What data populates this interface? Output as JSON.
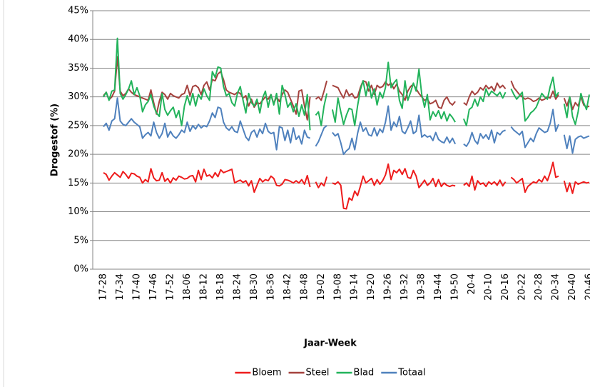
{
  "chart_data": {
    "type": "line",
    "ylabel": "Drogestof (%)",
    "xlabel": "Jaar-Week",
    "categories": [
      "17-28",
      null,
      null,
      null,
      null,
      null,
      "17-34",
      null,
      null,
      null,
      null,
      null,
      "17-40",
      null,
      null,
      null,
      null,
      null,
      "17-46",
      null,
      null,
      null,
      null,
      null,
      "17-52",
      null,
      null,
      null,
      null,
      null,
      "18-06",
      null,
      null,
      null,
      null,
      null,
      "18-12",
      null,
      null,
      null,
      null,
      null,
      "18-18",
      null,
      null,
      null,
      null,
      null,
      "18-24",
      null,
      null,
      null,
      null,
      null,
      "18-30",
      null,
      null,
      null,
      null,
      null,
      "18-36",
      null,
      null,
      null,
      null,
      null,
      "18-42",
      null,
      null,
      null,
      null,
      null,
      "18-48",
      null,
      null,
      null,
      null,
      null,
      "19-02",
      null,
      null,
      null,
      null,
      null,
      "19-08",
      null,
      null,
      null,
      null,
      null,
      "19-14",
      null,
      null,
      null,
      null,
      null,
      "19-20",
      null,
      null,
      null,
      null,
      null,
      "19-26",
      null,
      null,
      null,
      null,
      null,
      "19-32",
      null,
      null,
      null,
      null,
      null,
      "19-38",
      null,
      null,
      null,
      null,
      null,
      "19-44",
      null,
      null,
      null,
      null,
      null,
      "19-50",
      null,
      null,
      null,
      null,
      null,
      "20-4",
      null,
      null,
      null,
      null,
      null,
      "20-10",
      null,
      null,
      null,
      null,
      null,
      "20-16",
      null,
      null,
      null,
      null,
      null,
      "20-22",
      null,
      null,
      null,
      null,
      null,
      "20-28",
      null,
      null,
      null,
      null,
      null,
      "20-34",
      null,
      null,
      null,
      null,
      null,
      "20-40",
      null,
      null,
      null,
      null,
      null,
      "20-46"
    ],
    "series": [
      {
        "name": "Bloem",
        "color": "#ee1c1c",
        "values": [
          16.8,
          16.5,
          15.5,
          16.2,
          16.8,
          16.4,
          16.0,
          17.0,
          16.5,
          15.8,
          16.7,
          16.6,
          16.2,
          16.0,
          15.0,
          15.6,
          15.2,
          17.5,
          15.9,
          15.4,
          15.5,
          16.8,
          15.3,
          15.8,
          15.0,
          15.9,
          15.5,
          16.2,
          16.0,
          15.7,
          15.8,
          16.2,
          16.3,
          15.2,
          17.2,
          15.6,
          17.4,
          16.2,
          16.4,
          15.9,
          16.8,
          16.1,
          17.3,
          16.8,
          17.0,
          17.2,
          17.4,
          15.0,
          15.3,
          15.5,
          15.1,
          15.4,
          14.5,
          15.4,
          13.4,
          14.6,
          15.8,
          15.2,
          15.6,
          15.4,
          16.2,
          15.8,
          14.6,
          14.5,
          14.8,
          15.6,
          15.5,
          15.3,
          15.0,
          15.4,
          15.0,
          15.6,
          14.8,
          16.3,
          14.3,
          null,
          15.2,
          14.2,
          15.0,
          14.5,
          16.1,
          null,
          15.0,
          14.8,
          15.2,
          14.6,
          10.6,
          10.5,
          12.4,
          12.0,
          13.6,
          12.8,
          14.4,
          16.2,
          15.0,
          15.4,
          15.8,
          14.6,
          15.6,
          14.8,
          15.4,
          16.4,
          18.3,
          15.6,
          17.2,
          16.8,
          17.4,
          16.5,
          17.5,
          16.0,
          15.8,
          17.2,
          16.2,
          14.2,
          14.8,
          15.5,
          14.6,
          15.0,
          15.8,
          14.4,
          15.6,
          14.4,
          15.0,
          14.6,
          14.4,
          14.6,
          14.5,
          null,
          null,
          14.6,
          15.0,
          14.4,
          16.2,
          13.8,
          15.4,
          14.8,
          15.0,
          14.4,
          15.2,
          14.8,
          15.2,
          14.6,
          15.5,
          14.5,
          15.2,
          null,
          16.0,
          15.6,
          15.0,
          15.4,
          15.8,
          13.4,
          14.4,
          14.8,
          15.2,
          15.0,
          15.6,
          15.2,
          16.2,
          15.4,
          16.8,
          18.6,
          16.0,
          16.2,
          null,
          15.4,
          13.5,
          15.0,
          13.2,
          15.2,
          14.8,
          15.0,
          15.2,
          15.0,
          15.1
        ]
      },
      {
        "name": "Steel",
        "color": "#a5423e",
        "values": [
          30.2,
          30.8,
          29.5,
          30.0,
          31.0,
          37.0,
          31.0,
          30.2,
          30.6,
          31.4,
          30.8,
          30.4,
          30.2,
          30.0,
          29.8,
          29.6,
          29.4,
          31.2,
          29.0,
          27.0,
          29.2,
          30.8,
          30.4,
          29.6,
          30.6,
          30.2,
          30.0,
          29.8,
          30.4,
          30.6,
          32.0,
          30.2,
          31.8,
          32.0,
          31.6,
          30.4,
          32.0,
          32.6,
          31.2,
          33.0,
          32.8,
          34.0,
          34.4,
          33.0,
          31.2,
          30.8,
          30.6,
          30.4,
          30.8,
          30.6,
          29.8,
          30.2,
          28.4,
          29.6,
          28.2,
          29.0,
          28.8,
          29.4,
          30.0,
          29.6,
          30.4,
          28.8,
          30.0,
          29.2,
          30.4,
          31.2,
          30.8,
          29.6,
          28.4,
          27.0,
          31.0,
          31.2,
          28.4,
          26.0,
          30.0,
          null,
          29.6,
          30.0,
          29.4,
          31.0,
          32.8,
          null,
          32.0,
          31.8,
          31.6,
          30.6,
          29.8,
          31.2,
          30.2,
          30.6,
          29.8,
          30.0,
          31.6,
          32.8,
          32.6,
          31.0,
          32.0,
          30.4,
          32.0,
          31.6,
          31.8,
          32.6,
          32.0,
          32.4,
          31.4,
          32.2,
          31.0,
          30.4,
          29.4,
          31.0,
          31.8,
          32.2,
          31.4,
          30.6,
          30.0,
          29.4,
          29.6,
          28.8,
          29.0,
          29.4,
          28.2,
          28.0,
          29.4,
          30.0,
          29.0,
          28.6,
          29.2,
          null,
          null,
          29.0,
          28.6,
          30.0,
          31.0,
          30.4,
          30.8,
          31.6,
          31.2,
          32.0,
          31.4,
          31.8,
          31.0,
          32.4,
          31.6,
          32.0,
          31.4,
          null,
          32.8,
          31.6,
          31.0,
          30.4,
          30.0,
          29.6,
          29.8,
          29.6,
          29.2,
          29.4,
          29.8,
          29.4,
          29.6,
          30.0,
          29.8,
          31.0,
          29.6,
          30.4,
          null,
          29.8,
          28.4,
          30.0,
          27.8,
          29.0,
          28.4,
          30.0,
          28.6,
          28.2,
          28.4
        ]
      },
      {
        "name": "Blad",
        "color": "#22b35b",
        "values": [
          30.0,
          30.8,
          29.4,
          31.0,
          31.2,
          40.2,
          30.6,
          29.6,
          30.4,
          31.4,
          32.8,
          30.4,
          31.6,
          30.2,
          27.4,
          28.6,
          29.2,
          30.4,
          28.4,
          27.2,
          26.6,
          30.6,
          27.8,
          26.8,
          27.6,
          28.2,
          26.4,
          27.6,
          25.0,
          28.4,
          30.2,
          28.6,
          30.6,
          28.4,
          30.4,
          29.6,
          31.4,
          30.2,
          29.4,
          34.4,
          33.4,
          35.2,
          35.0,
          31.8,
          30.2,
          30.6,
          29.0,
          28.4,
          30.6,
          31.8,
          29.4,
          27.2,
          30.6,
          29.0,
          28.4,
          29.6,
          27.2,
          29.8,
          31.0,
          28.2,
          30.4,
          28.6,
          30.6,
          27.0,
          32.0,
          30.4,
          28.2,
          29.0,
          27.4,
          28.8,
          26.6,
          28.6,
          26.8,
          30.4,
          24.2,
          null,
          26.8,
          27.4,
          25.0,
          28.4,
          30.6,
          null,
          27.8,
          25.6,
          29.8,
          27.4,
          25.2,
          26.8,
          28.0,
          27.8,
          25.0,
          28.4,
          31.2,
          32.8,
          30.2,
          32.6,
          29.8,
          31.4,
          28.6,
          30.8,
          29.8,
          31.6,
          36.0,
          31.6,
          32.4,
          33.0,
          29.4,
          28.0,
          32.8,
          29.4,
          30.8,
          32.4,
          31.0,
          34.8,
          30.4,
          28.2,
          30.4,
          26.0,
          27.4,
          26.6,
          27.6,
          26.2,
          27.4,
          25.8,
          27.0,
          26.4,
          25.6,
          null,
          null,
          26.2,
          25.0,
          27.8,
          28.2,
          29.6,
          28.4,
          30.0,
          29.2,
          31.4,
          30.2,
          31.0,
          30.6,
          30.2,
          30.8,
          29.8,
          30.8,
          null,
          31.4,
          30.4,
          29.6,
          30.2,
          30.8,
          25.8,
          26.4,
          27.2,
          27.6,
          28.2,
          29.4,
          30.6,
          30.0,
          29.6,
          31.8,
          33.4,
          30.0,
          30.8,
          null,
          28.8,
          26.4,
          30.0,
          26.6,
          25.2,
          27.4,
          30.6,
          29.0,
          27.8,
          30.4
        ]
      },
      {
        "name": "Totaal",
        "color": "#4f81bd",
        "values": [
          24.8,
          25.4,
          24.2,
          25.8,
          26.2,
          29.8,
          25.8,
          25.2,
          25.0,
          25.6,
          26.2,
          25.6,
          25.2,
          24.8,
          22.8,
          23.4,
          23.8,
          23.2,
          25.6,
          23.8,
          22.8,
          23.6,
          25.4,
          23.0,
          24.0,
          23.2,
          22.8,
          23.4,
          24.2,
          23.8,
          25.6,
          24.0,
          25.0,
          24.4,
          25.2,
          24.6,
          25.0,
          24.8,
          25.8,
          27.2,
          26.4,
          28.2,
          28.0,
          25.6,
          24.6,
          24.2,
          24.8,
          24.0,
          23.8,
          25.8,
          24.4,
          23.0,
          22.4,
          23.8,
          24.2,
          23.0,
          24.4,
          23.6,
          25.4,
          24.0,
          23.6,
          23.8,
          20.8,
          24.8,
          24.6,
          22.4,
          24.2,
          22.0,
          24.6,
          22.6,
          23.2,
          21.8,
          24.2,
          23.0,
          22.8,
          null,
          21.4,
          22.2,
          23.4,
          24.6,
          25.0,
          null,
          23.8,
          23.2,
          23.6,
          22.0,
          20.0,
          20.6,
          21.0,
          22.8,
          20.8,
          23.6,
          25.6,
          24.0,
          24.6,
          23.4,
          23.2,
          24.6,
          23.2,
          24.4,
          23.8,
          25.6,
          28.4,
          24.2,
          25.6,
          24.8,
          26.6,
          24.0,
          23.6,
          24.6,
          25.8,
          23.6,
          24.0,
          26.8,
          23.0,
          23.4,
          23.0,
          23.2,
          22.4,
          23.8,
          22.6,
          22.2,
          22.0,
          23.0,
          22.0,
          22.8,
          21.8,
          null,
          null,
          21.8,
          21.4,
          22.2,
          23.8,
          22.4,
          21.8,
          23.6,
          22.8,
          23.4,
          22.6,
          24.2,
          22.0,
          23.8,
          23.4,
          24.0,
          24.2,
          null,
          24.8,
          24.2,
          23.8,
          23.4,
          24.0,
          21.2,
          22.0,
          22.8,
          22.2,
          23.6,
          24.6,
          24.2,
          23.8,
          24.0,
          25.4,
          27.8,
          24.0,
          25.2,
          null,
          23.4,
          21.0,
          23.2,
          20.2,
          22.6,
          23.0,
          23.2,
          22.8,
          23.0,
          23.2
        ]
      }
    ],
    "ylim": [
      0,
      45
    ],
    "yticks": [
      {
        "value": 0,
        "label": "0%"
      },
      {
        "value": 5,
        "label": "5%"
      },
      {
        "value": 10,
        "label": "10%"
      },
      {
        "value": 15,
        "label": "15%"
      },
      {
        "value": 20,
        "label": "20%"
      },
      {
        "value": 25,
        "label": "25%"
      },
      {
        "value": 30,
        "label": "30%"
      },
      {
        "value": 35,
        "label": "35%"
      },
      {
        "value": 40,
        "label": "40%"
      },
      {
        "value": 45,
        "label": "45%"
      }
    ],
    "grid": true,
    "legend": "bottom"
  }
}
